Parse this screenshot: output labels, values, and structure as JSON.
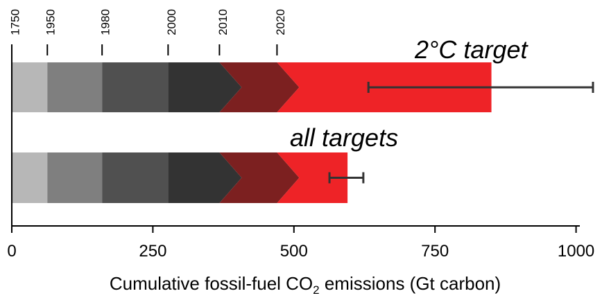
{
  "chart_data": {
    "type": "bar",
    "xlabel": {
      "prefix": "Cumulative fossil-fuel CO",
      "subscript": "2",
      "suffix": " emissions (Gt carbon)"
    },
    "xlim": [
      0,
      1040
    ],
    "x_ticks": [
      {
        "value": 0,
        "label": "0"
      },
      {
        "value": 250,
        "label": "250"
      },
      {
        "value": 500,
        "label": "500"
      },
      {
        "value": 750,
        "label": "750"
      },
      {
        "value": 1000,
        "label": "1000"
      }
    ],
    "year_markers": [
      {
        "year": "1750",
        "value": 0
      },
      {
        "year": "1950",
        "value": 63
      },
      {
        "year": "1980",
        "value": 160
      },
      {
        "year": "2000",
        "value": 277
      },
      {
        "year": "2010",
        "value": 368
      },
      {
        "year": "2020",
        "value": 470
      }
    ],
    "segment_colors": [
      "#b7b7b7",
      "#7f7f7f",
      "#505050",
      "#333333",
      "#7c2020",
      "#ee2327"
    ],
    "bars": [
      {
        "label": "2°C target",
        "total": 850,
        "error": [
          632,
          1030
        ]
      },
      {
        "label": "all targets",
        "total": 595,
        "error": [
          563,
          623
        ]
      }
    ]
  }
}
